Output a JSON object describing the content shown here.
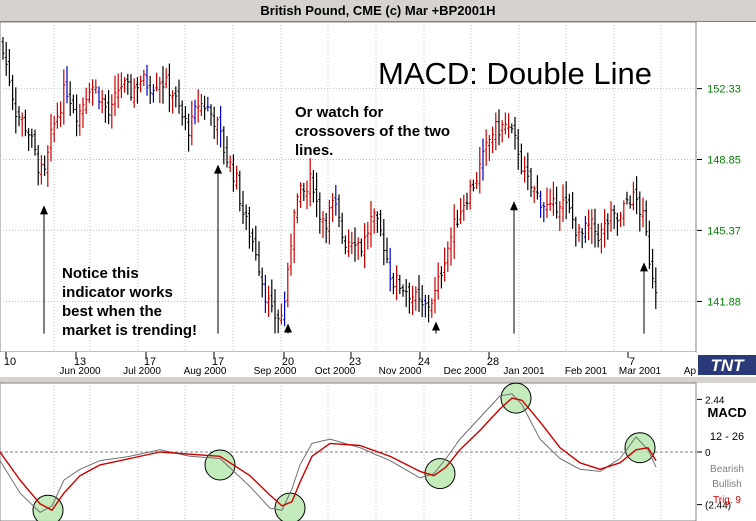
{
  "window_title": "British Pound, CME (c) Mar +BP2001H",
  "chart_data": [
    {
      "type": "bar",
      "subtype": "ohlc",
      "title": "MACD: Double Line",
      "annotations": [
        {
          "name": "trending-note",
          "lines": [
            "Notice this",
            "indicator works",
            "best when the",
            "market is trending!"
          ]
        },
        {
          "name": "crossover-note",
          "lines": [
            "Or watch for",
            "crossovers of the two",
            "lines."
          ]
        }
      ],
      "y_ticks": [
        "152.33",
        "148.85",
        "145.37",
        "141.88"
      ],
      "ylim": [
        139.4,
        155.6
      ],
      "x_day_labels": [
        "10",
        "13",
        "17",
        "17",
        "20",
        "23",
        "24",
        "28",
        "7"
      ],
      "x_month_labels": [
        "Jun 2000",
        "Jul 2000",
        "Aug 2000",
        "Sep 2000",
        "Oct 2000",
        "Nov 2000",
        "Dec 2000",
        "Jan 2001",
        "Feb 2001",
        "Mar 2001",
        "Ap"
      ],
      "grid": true,
      "bar_colors": {
        "up": "#cc0000",
        "down": "#000000",
        "neutral": "#0000cc"
      },
      "close_path": [
        [
          0,
          154.6
        ],
        [
          8,
          153.2
        ],
        [
          16,
          151.2
        ],
        [
          28,
          150.3
        ],
        [
          38,
          148.6
        ],
        [
          44,
          147.9
        ],
        [
          52,
          150.2
        ],
        [
          60,
          151.5
        ],
        [
          66,
          152.4
        ],
        [
          78,
          151.0
        ],
        [
          90,
          152.6
        ],
        [
          100,
          152.0
        ],
        [
          110,
          150.9
        ],
        [
          120,
          152.6
        ],
        [
          130,
          152.1
        ],
        [
          140,
          152.8
        ],
        [
          150,
          152.5
        ],
        [
          160,
          152.8
        ],
        [
          172,
          152.2
        ],
        [
          182,
          150.9
        ],
        [
          190,
          150.3
        ],
        [
          198,
          151.6
        ],
        [
          206,
          151.5
        ],
        [
          216,
          150.7
        ],
        [
          226,
          149.0
        ],
        [
          236,
          147.9
        ],
        [
          244,
          146.0
        ],
        [
          256,
          144.4
        ],
        [
          264,
          142.5
        ],
        [
          272,
          141.2
        ],
        [
          282,
          141.1
        ],
        [
          288,
          143.1
        ],
        [
          294,
          146.6
        ],
        [
          300,
          147.1
        ],
        [
          308,
          147.3
        ],
        [
          312,
          148.1
        ],
        [
          318,
          146.3
        ],
        [
          326,
          145.9
        ],
        [
          334,
          146.7
        ],
        [
          344,
          144.8
        ],
        [
          354,
          145.1
        ],
        [
          362,
          144.5
        ],
        [
          372,
          146.0
        ],
        [
          382,
          145.1
        ],
        [
          392,
          142.9
        ],
        [
          404,
          142.6
        ],
        [
          414,
          142.1
        ],
        [
          422,
          141.5
        ],
        [
          428,
          141.7
        ],
        [
          436,
          142.3
        ],
        [
          444,
          144.0
        ],
        [
          452,
          145.2
        ],
        [
          460,
          146.4
        ],
        [
          468,
          147.2
        ],
        [
          476,
          147.9
        ],
        [
          484,
          149.0
        ],
        [
          492,
          150.2
        ],
        [
          500,
          150.4
        ],
        [
          506,
          150.5
        ],
        [
          512,
          150.0
        ],
        [
          518,
          149.4
        ],
        [
          524,
          148.0
        ],
        [
          532,
          147.4
        ],
        [
          542,
          146.8
        ],
        [
          550,
          146.3
        ],
        [
          560,
          146.9
        ],
        [
          570,
          146.2
        ],
        [
          580,
          145.0
        ],
        [
          590,
          145.6
        ],
        [
          600,
          145.1
        ],
        [
          610,
          146.0
        ],
        [
          620,
          145.8
        ],
        [
          628,
          147.0
        ],
        [
          636,
          146.9
        ],
        [
          644,
          145.8
        ],
        [
          650,
          143.8
        ],
        [
          656,
          142.6
        ]
      ],
      "arrows": [
        {
          "x": 44,
          "from": 146.6,
          "to": 140.3
        },
        {
          "x": 218,
          "from": 148.6,
          "to": 140.3
        },
        {
          "x": 288,
          "from": 140.8,
          "to": 140.3
        },
        {
          "x": 436,
          "from": 140.9,
          "to": 140.3
        },
        {
          "x": 514,
          "from": 146.8,
          "to": 140.3
        },
        {
          "x": 644,
          "from": 143.8,
          "to": 140.3
        }
      ]
    },
    {
      "type": "line",
      "title": "MACD",
      "params": "12 - 26",
      "ylim": [
        -3.2,
        3.2
      ],
      "y_ticks": [
        "2.44",
        "0",
        "(2.44)"
      ],
      "legend_labels": [
        "Bearish",
        "Bullish",
        "Trig. 9"
      ],
      "series": [
        {
          "color": "#707070",
          "points": [
            [
              0,
              -0.4
            ],
            [
              20,
              -1.9
            ],
            [
              40,
              -2.8
            ],
            [
              52,
              -2.5
            ],
            [
              64,
              -1.3
            ],
            [
              80,
              -0.8
            ],
            [
              100,
              -0.4
            ],
            [
              130,
              -0.2
            ],
            [
              160,
              0.1
            ],
            [
              190,
              -0.2
            ],
            [
              220,
              -0.3
            ],
            [
              250,
              -1.6
            ],
            [
              270,
              -2.6
            ],
            [
              282,
              -2.7
            ],
            [
              292,
              -1.7
            ],
            [
              300,
              -0.6
            ],
            [
              312,
              0.4
            ],
            [
              330,
              0.6
            ],
            [
              360,
              0.2
            ],
            [
              390,
              -0.4
            ],
            [
              420,
              -1.2
            ],
            [
              434,
              -1.0
            ],
            [
              446,
              -0.3
            ],
            [
              460,
              0.6
            ],
            [
              480,
              1.6
            ],
            [
              500,
              2.6
            ],
            [
              512,
              2.7
            ],
            [
              522,
              2.2
            ],
            [
              540,
              0.6
            ],
            [
              560,
              -0.3
            ],
            [
              580,
              -0.8
            ],
            [
              600,
              -0.9
            ],
            [
              620,
              -0.3
            ],
            [
              636,
              0.7
            ],
            [
              648,
              0.1
            ],
            [
              656,
              -0.7
            ]
          ]
        },
        {
          "color": "#cc0000",
          "points": [
            [
              0,
              0.0
            ],
            [
              20,
              -1.3
            ],
            [
              40,
              -2.4
            ],
            [
              52,
              -2.7
            ],
            [
              64,
              -1.9
            ],
            [
              80,
              -1.1
            ],
            [
              100,
              -0.6
            ],
            [
              130,
              -0.3
            ],
            [
              160,
              0.0
            ],
            [
              190,
              -0.1
            ],
            [
              220,
              -0.2
            ],
            [
              250,
              -1.1
            ],
            [
              270,
              -2.0
            ],
            [
              282,
              -2.5
            ],
            [
              292,
              -2.3
            ],
            [
              300,
              -1.4
            ],
            [
              312,
              -0.2
            ],
            [
              330,
              0.4
            ],
            [
              360,
              0.3
            ],
            [
              390,
              -0.2
            ],
            [
              420,
              -0.9
            ],
            [
              434,
              -1.1
            ],
            [
              446,
              -0.7
            ],
            [
              460,
              0.1
            ],
            [
              480,
              1.0
            ],
            [
              500,
              2.0
            ],
            [
              512,
              2.5
            ],
            [
              522,
              2.4
            ],
            [
              540,
              1.4
            ],
            [
              560,
              0.2
            ],
            [
              580,
              -0.5
            ],
            [
              600,
              -0.8
            ],
            [
              620,
              -0.5
            ],
            [
              636,
              0.1
            ],
            [
              648,
              0.2
            ],
            [
              656,
              -0.4
            ]
          ]
        }
      ],
      "circles": [
        [
          48,
          -2.7
        ],
        [
          220,
          -0.6
        ],
        [
          290,
          -2.6
        ],
        [
          440,
          -1.0
        ],
        [
          516,
          2.5
        ],
        [
          640,
          0.2
        ]
      ]
    }
  ],
  "logo_text": "TNT"
}
